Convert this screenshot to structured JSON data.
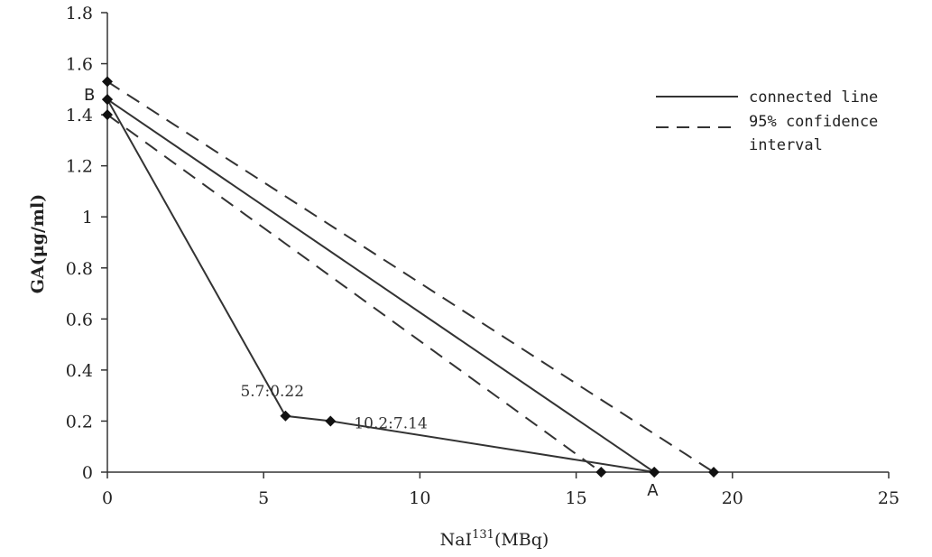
{
  "chart_data": {
    "type": "line",
    "title": "",
    "xlabel_main": "NaI",
    "xlabel_sup": "131",
    "xlabel_unit": "(MBq)",
    "ylabel": "GA(μg/ml)",
    "xlim": [
      0,
      25
    ],
    "ylim": [
      0,
      1.8
    ],
    "x_ticks": [
      "0",
      "5",
      "10",
      "15",
      "20",
      "25"
    ],
    "y_ticks": [
      "0",
      "0.2",
      "0.4",
      "0.6",
      "0.8",
      "1",
      "1.2",
      "1.4",
      "1.6",
      "1.8"
    ],
    "grid": false,
    "legend_position": "top-right",
    "legend": [
      {
        "label": "connected line",
        "style": "solid"
      },
      {
        "label": "95% confidence",
        "style": "dashed"
      },
      {
        "label": "interval",
        "style": "none"
      }
    ],
    "series": [
      {
        "name": "connected line",
        "style": "solid",
        "x": [
          0,
          17.5
        ],
        "y": [
          1.46,
          0
        ]
      },
      {
        "style": "dashed",
        "x": [
          0,
          19.4
        ],
        "y": [
          1.53,
          0
        ]
      },
      {
        "style": "dashed",
        "x": [
          0,
          15.8
        ],
        "y": [
          1.4,
          0
        ]
      },
      {
        "style": "solid",
        "x": [
          0,
          5.7,
          7.14,
          17.5
        ],
        "y": [
          1.46,
          0.22,
          0.2,
          0
        ]
      }
    ],
    "point_labels": [
      {
        "text": "B",
        "x": 0,
        "y": 1.46
      },
      {
        "text": "A",
        "x": 17.5,
        "y": 0
      }
    ],
    "annotations": [
      {
        "text": "5.7:0.22",
        "x": 5.7,
        "y": 0.22
      },
      {
        "text": "10.2:7.14",
        "x": 7.14,
        "y": 0.2
      }
    ]
  }
}
